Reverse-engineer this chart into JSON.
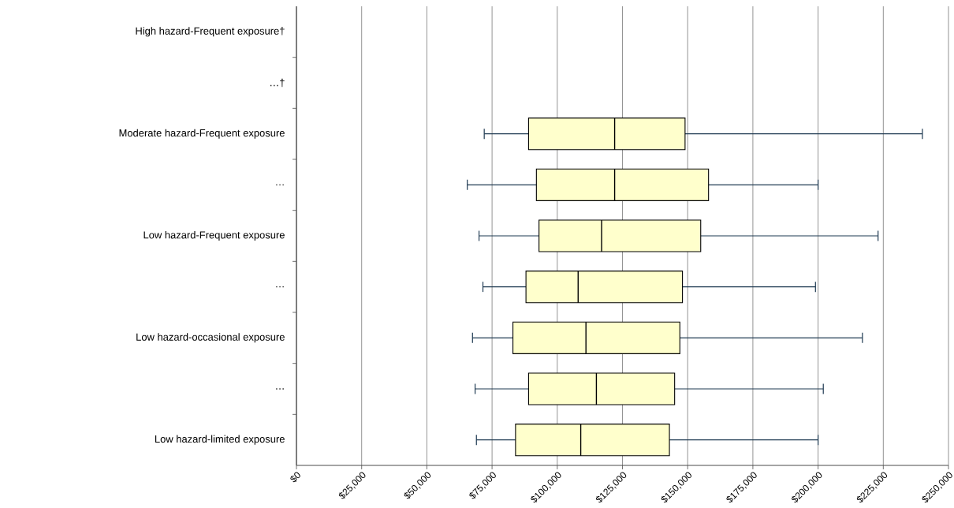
{
  "chart_data": {
    "type": "box",
    "orientation": "horizontal",
    "categories": [
      "High hazard-Frequent exposure†",
      "…†",
      "Moderate hazard-Frequent exposure",
      "…",
      "Low hazard-Frequent exposure",
      "…",
      "Low hazard-occasional exposure",
      "…",
      "Low hazard-limited exposure"
    ],
    "boxes": [
      null,
      null,
      {
        "low": 72000,
        "q1": 89000,
        "median": 122000,
        "q3": 149000,
        "high": 240000
      },
      {
        "low": 65500,
        "q1": 92000,
        "median": 122000,
        "q3": 158000,
        "high": 200000
      },
      {
        "low": 70000,
        "q1": 93000,
        "median": 117000,
        "q3": 155000,
        "high": 223000
      },
      {
        "low": 71500,
        "q1": 88000,
        "median": 108000,
        "q3": 148000,
        "high": 199000
      },
      {
        "low": 67500,
        "q1": 83000,
        "median": 111000,
        "q3": 147000,
        "high": 217000
      },
      {
        "low": 68500,
        "q1": 89000,
        "median": 115000,
        "q3": 145000,
        "high": 202000
      },
      {
        "low": 69000,
        "q1": 84000,
        "median": 109000,
        "q3": 143000,
        "high": 200000
      }
    ],
    "color": "#ffffcc",
    "xlim": [
      0,
      250000
    ],
    "xticks": [
      {
        "value": 0,
        "label": "$0"
      },
      {
        "value": 25000,
        "label": "$25,000"
      },
      {
        "value": 50000,
        "label": "$50,000"
      },
      {
        "value": 75000,
        "label": "$75,000"
      },
      {
        "value": 100000,
        "label": "$100,000"
      },
      {
        "value": 125000,
        "label": "$125,000"
      },
      {
        "value": 150000,
        "label": "$150,000"
      },
      {
        "value": 175000,
        "label": "$175,000"
      },
      {
        "value": 200000,
        "label": "$200,000"
      },
      {
        "value": 225000,
        "label": "$225,000"
      },
      {
        "value": 250000,
        "label": "$250,000"
      }
    ],
    "grid": "x"
  }
}
